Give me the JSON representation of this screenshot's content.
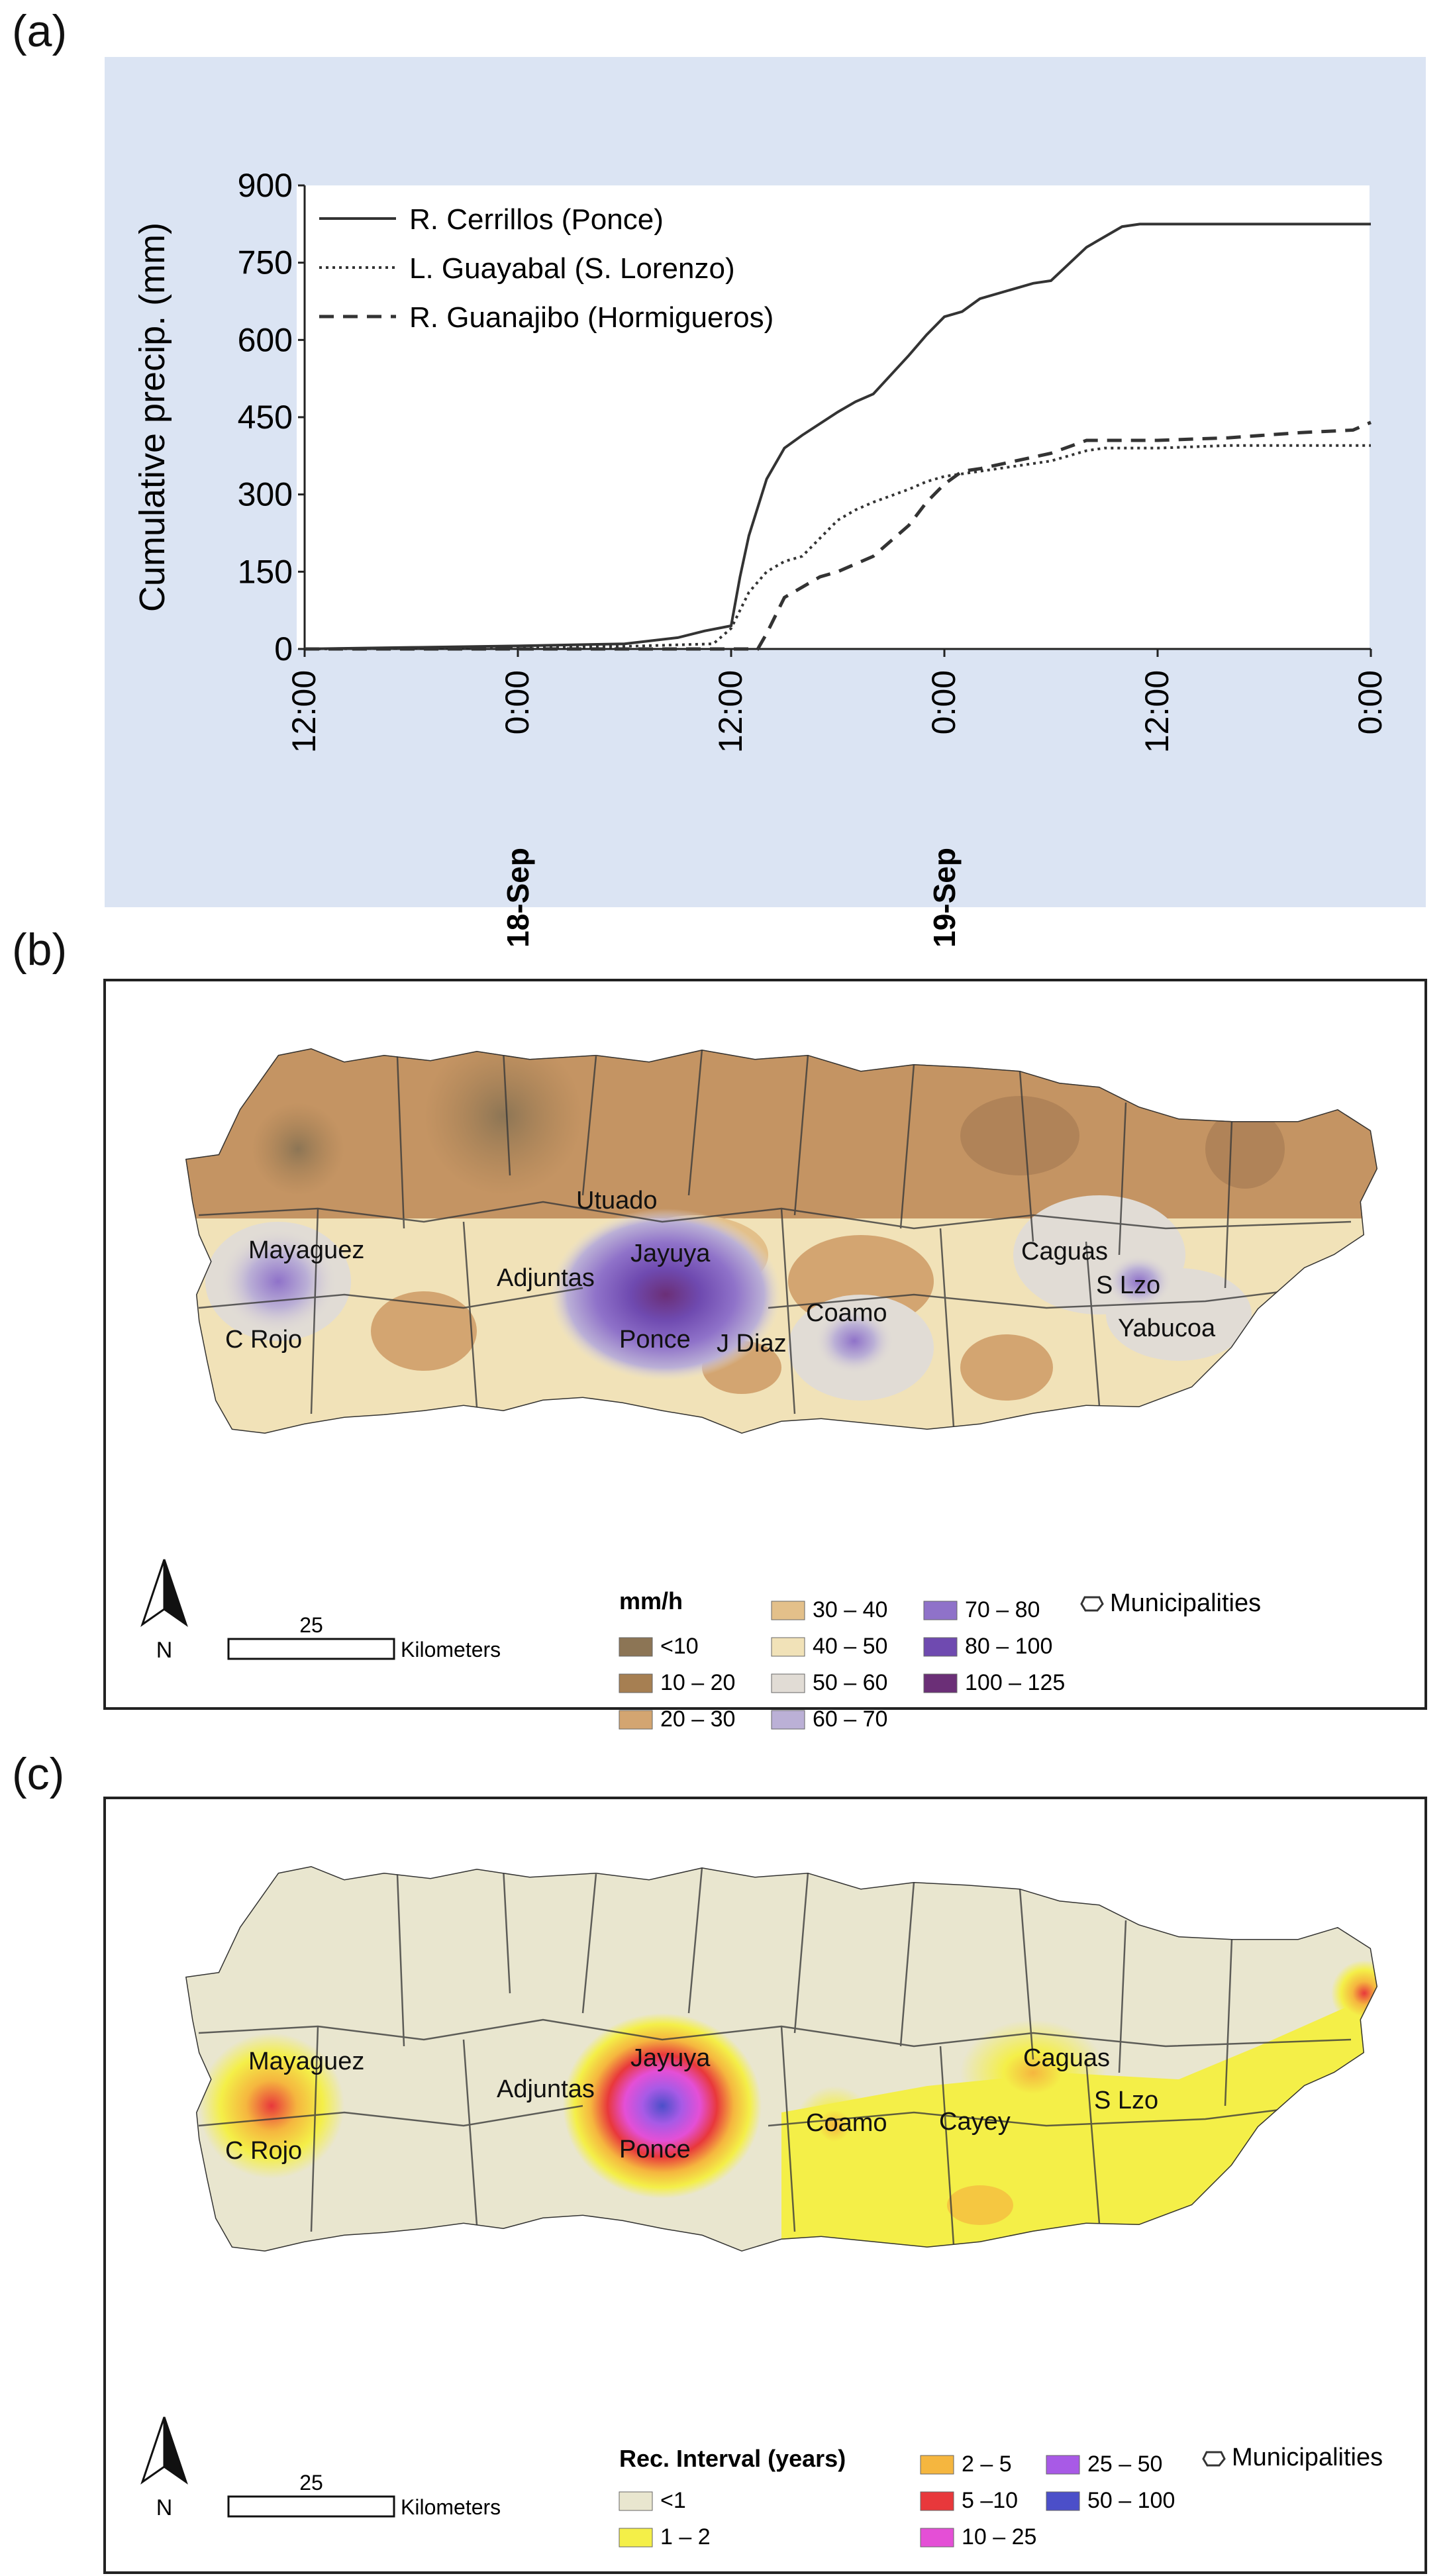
{
  "panels": {
    "a": "(a)",
    "b": "(b)",
    "c": "(c)"
  },
  "chart_data": {
    "type": "line",
    "ylabel": "Cumulative precip. (mm)",
    "ylim": [
      0,
      900
    ],
    "yticks": [
      "0",
      "150",
      "300",
      "450",
      "600",
      "750",
      "900"
    ],
    "xticks": [
      "12:00",
      "0:00",
      "12:00",
      "0:00",
      "12:00",
      "0:00"
    ],
    "date_labels": [
      {
        "label": "18-Sep",
        "at_hour": 12
      },
      {
        "label": "19-Sep",
        "at_hour": 36
      }
    ],
    "x_unit": "hours after 17-Sep 12:00",
    "background": "#dbe4f3",
    "series": [
      {
        "name": "R. Cerrillos (Ponce)",
        "style": "solid",
        "x": [
          0,
          6,
          12,
          18,
          21,
          22.5,
          24,
          24.5,
          25,
          26,
          27,
          28,
          30,
          31,
          32,
          34,
          35,
          36,
          37,
          38,
          40,
          41,
          42,
          44,
          45,
          46,
          47,
          48,
          50,
          51,
          52,
          53,
          54,
          56,
          60
        ],
        "y": [
          0,
          3,
          6,
          10,
          22,
          35,
          45,
          140,
          220,
          330,
          390,
          415,
          460,
          480,
          495,
          570,
          610,
          645,
          655,
          680,
          700,
          710,
          715,
          780,
          800,
          820,
          825,
          825,
          825,
          825,
          825,
          825,
          825,
          825,
          825
        ]
      },
      {
        "name": "L. Guayabal (S. Lorenzo)",
        "style": "dotted",
        "x": [
          0,
          12,
          18,
          23,
          24,
          25,
          26,
          27,
          28,
          29,
          30,
          31,
          32,
          34,
          35,
          36,
          38,
          40,
          42,
          44,
          45,
          48,
          52,
          56,
          60
        ],
        "y": [
          0,
          2,
          5,
          10,
          40,
          110,
          150,
          170,
          180,
          215,
          250,
          270,
          285,
          310,
          325,
          335,
          345,
          355,
          365,
          385,
          390,
          390,
          395,
          395,
          395
        ]
      },
      {
        "name": "R. Guanajibo (Hormigueros)",
        "style": "dashed",
        "x": [
          0,
          20,
          24,
          25.5,
          26,
          27,
          28,
          29,
          30,
          32,
          33,
          34,
          35,
          36,
          37,
          38,
          40,
          42,
          44,
          46,
          48,
          52,
          56,
          59,
          60
        ],
        "y": [
          0,
          0,
          0,
          0,
          30,
          100,
          120,
          140,
          150,
          180,
          210,
          240,
          285,
          320,
          345,
          350,
          365,
          380,
          405,
          405,
          405,
          410,
          420,
          425,
          440
        ]
      }
    ]
  },
  "map_b": {
    "towns": [
      "Utuado",
      "Mayaguez",
      "Adjuntas",
      "Jayuya",
      "C Rojo",
      "Ponce",
      "J Diaz",
      "Coamo",
      "Caguas",
      "S Lzo",
      "Yabucoa"
    ],
    "legend_title": "mm/h",
    "legend_items": [
      {
        "label": "<10",
        "color": "#8c7555"
      },
      {
        "label": "10 – 20",
        "color": "#a67f52"
      },
      {
        "label": "20 – 30",
        "color": "#d3a571"
      },
      {
        "label": "30 – 40",
        "color": "#e3c08a"
      },
      {
        "label": "40 – 50",
        "color": "#f1e2b8"
      },
      {
        "label": "50 – 60",
        "color": "#e1dcd5"
      },
      {
        "label": "60 – 70",
        "color": "#bbb0d6"
      },
      {
        "label": "70 – 80",
        "color": "#8f72c9"
      },
      {
        "label": "80 – 100",
        "color": "#6f4ab0"
      },
      {
        "label": "100 – 125",
        "color": "#6b2f77"
      }
    ],
    "municipalities_label": "Municipalities",
    "scale_value": "25",
    "scale_unit": "Kilometers",
    "north": "N"
  },
  "map_c": {
    "towns": [
      "Mayaguez",
      "Adjuntas",
      "Jayuya",
      "C Rojo",
      "Ponce",
      "Coamo",
      "Cayey",
      "Caguas",
      "S Lzo"
    ],
    "legend_title": "Rec. Interval (years)",
    "legend_items": [
      {
        "label": "<1",
        "color": "#e9e6cf"
      },
      {
        "label": "1 – 2",
        "color": "#f4ef48"
      },
      {
        "label": "2 – 5",
        "color": "#f5b63f"
      },
      {
        "label": "5 –10",
        "color": "#e8383b"
      },
      {
        "label": "10 – 25",
        "color": "#e44fd6"
      },
      {
        "label": "25 – 50",
        "color": "#a85ae6"
      },
      {
        "label": "50 – 100",
        "color": "#4b4fc9"
      }
    ],
    "municipalities_label": "Municipalities",
    "scale_value": "25",
    "scale_unit": "Kilometers",
    "north": "N"
  }
}
